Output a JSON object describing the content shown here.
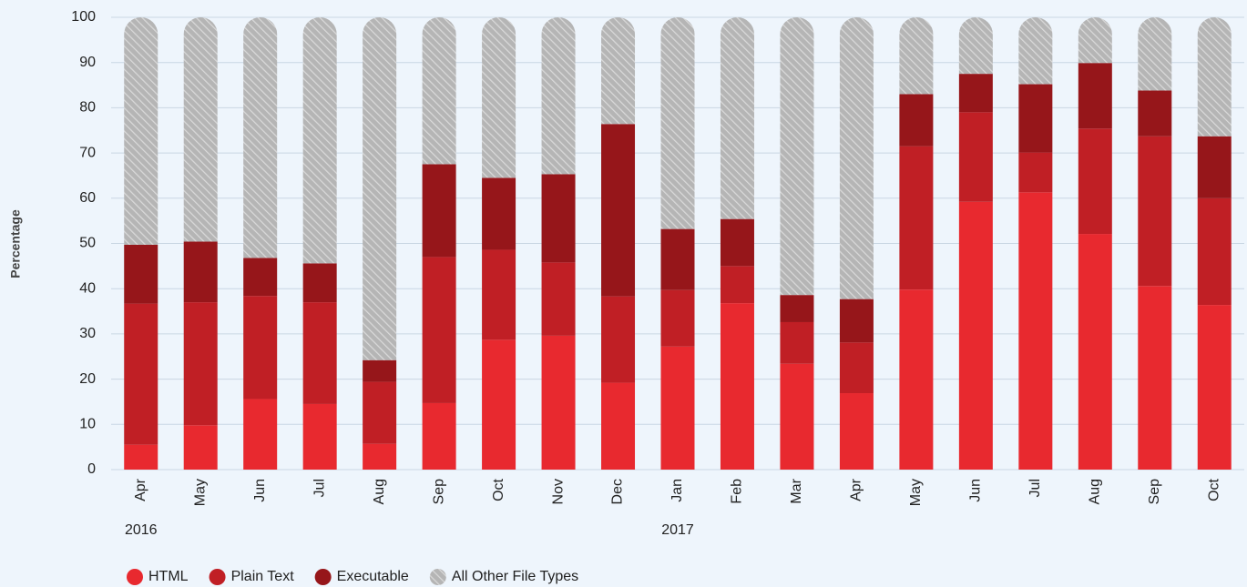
{
  "chart_data": {
    "type": "stacked_bar",
    "y_label": "Percentage",
    "categories": [
      "Apr",
      "May",
      "Jun",
      "Jul",
      "Aug",
      "Sep",
      "Oct",
      "Nov",
      "Dec",
      "Jan",
      "Feb",
      "Mar",
      "Apr",
      "May",
      "Jun",
      "Jul",
      "Aug",
      "Sep",
      "Oct"
    ],
    "year_labels": [
      "2016",
      "2017"
    ],
    "series": [
      {
        "name": "HTML",
        "color": "#e8292f",
        "values": [
          5.5,
          9.8,
          15.6,
          14.5,
          5.7,
          14.7,
          28.7,
          29.6,
          19.2,
          27.2,
          36.8,
          23.4,
          16.9,
          39.8,
          59.2,
          61.3,
          52.1,
          40.6,
          36.4
        ]
      },
      {
        "name": "Plain Text",
        "color": "#c01f25",
        "values": [
          31.2,
          27.2,
          22.8,
          22.5,
          13.7,
          32.3,
          19.9,
          16.2,
          19.1,
          12.5,
          8.2,
          9.2,
          11.2,
          31.7,
          19.8,
          8.8,
          23.3,
          33.1,
          23.6
        ]
      },
      {
        "name": "Executable",
        "color": "#96161a",
        "values": [
          13.0,
          13.4,
          8.4,
          8.6,
          4.8,
          20.5,
          15.9,
          19.5,
          38.1,
          13.5,
          10.4,
          6.0,
          9.6,
          11.5,
          8.5,
          15.1,
          14.5,
          10.1,
          13.7
        ]
      },
      {
        "name": "All Other File Types",
        "color": "#b5b5b5",
        "hatch": true,
        "values": [
          50.3,
          49.6,
          53.2,
          54.4,
          75.8,
          32.5,
          35.5,
          34.7,
          23.6,
          46.8,
          44.6,
          61.4,
          62.3,
          17.0,
          12.5,
          14.8,
          10.1,
          16.2,
          26.3
        ]
      }
    ],
    "ylim": [
      0,
      100
    ],
    "yticks": [
      0,
      10,
      20,
      30,
      40,
      50,
      60,
      70,
      80,
      90,
      100
    ],
    "grid": true,
    "legend": "bottom-left"
  }
}
